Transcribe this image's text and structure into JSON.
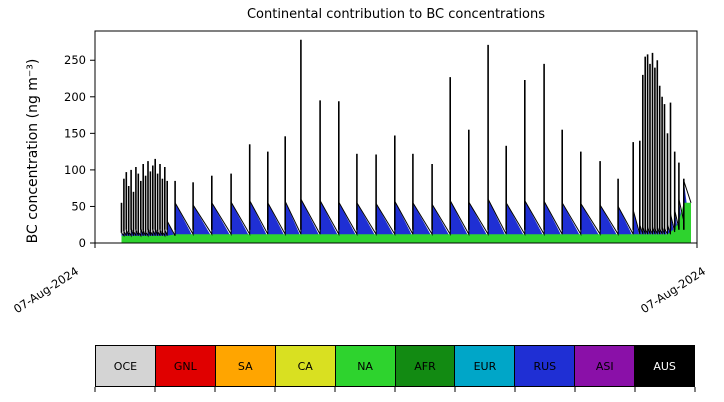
{
  "chart_data": {
    "type": "area",
    "title": "Continental contribution to BC concentrations",
    "ylabel": "BC concentration (ng m⁻³)",
    "xlabel": "",
    "xtick_labels": [
      "07-Aug-2024",
      "07-Aug-2024"
    ],
    "ylim": [
      0,
      290
    ],
    "yticks": [
      0,
      50,
      100,
      150,
      200,
      250
    ],
    "grid": false,
    "legend_position": "bottom",
    "legend": [
      {
        "label": "OCE",
        "color": "#d4d4d4",
        "text_color": "#000000"
      },
      {
        "label": "GNL",
        "color": "#e00000",
        "text_color": "#000000"
      },
      {
        "label": "SA",
        "color": "#ffa500",
        "text_color": "#000000"
      },
      {
        "label": "CA",
        "color": "#d9e021",
        "text_color": "#000000"
      },
      {
        "label": "NA",
        "color": "#2ed32e",
        "text_color": "#000000"
      },
      {
        "label": "AFR",
        "color": "#128a12",
        "text_color": "#000000"
      },
      {
        "label": "EUR",
        "color": "#00a6c8",
        "text_color": "#000000"
      },
      {
        "label": "RUS",
        "color": "#1f2fd4",
        "text_color": "#000000"
      },
      {
        "label": "ASI",
        "color": "#8a10a8",
        "text_color": "#000000"
      },
      {
        "label": "AUS",
        "color": "#000000",
        "text_color": "#ffffff"
      }
    ],
    "stacking_note": "Stacked spike/sawtooth time series: NA (green) base layer, RUS (blue) sawtooth layer decaying between events, AUS/total (black) narrow spikes on top",
    "events_format": [
      "t_fraction_of_x_axis",
      "peak_black_ng_m3",
      "saw_blue_start_ng_m3",
      "green_base_ng_m3"
    ],
    "baseline": {
      "saw_floor": 8
    },
    "t_end": 0.99,
    "events": [
      [
        0.044,
        55,
        14,
        10
      ],
      [
        0.048,
        88,
        16,
        10
      ],
      [
        0.052,
        97,
        18,
        10
      ],
      [
        0.056,
        78,
        15,
        10
      ],
      [
        0.06,
        100,
        20,
        10
      ],
      [
        0.064,
        70,
        16,
        10
      ],
      [
        0.068,
        104,
        18,
        10
      ],
      [
        0.072,
        95,
        15,
        10
      ],
      [
        0.076,
        85,
        20,
        10
      ],
      [
        0.08,
        108,
        17,
        10
      ],
      [
        0.084,
        92,
        15,
        10
      ],
      [
        0.088,
        112,
        20,
        10
      ],
      [
        0.092,
        98,
        16,
        10
      ],
      [
        0.096,
        106,
        18,
        10
      ],
      [
        0.1,
        115,
        20,
        10
      ],
      [
        0.104,
        95,
        16,
        10
      ],
      [
        0.108,
        108,
        18,
        10
      ],
      [
        0.112,
        88,
        15,
        10
      ],
      [
        0.116,
        104,
        18,
        10
      ],
      [
        0.12,
        85,
        30,
        10
      ],
      [
        0.133,
        85,
        55,
        12
      ],
      [
        0.163,
        83,
        52,
        12
      ],
      [
        0.194,
        92,
        55,
        12
      ],
      [
        0.226,
        95,
        56,
        12
      ],
      [
        0.257,
        135,
        58,
        12
      ],
      [
        0.287,
        125,
        55,
        12
      ],
      [
        0.316,
        146,
        57,
        12
      ],
      [
        0.342,
        278,
        60,
        12
      ],
      [
        0.374,
        195,
        58,
        12
      ],
      [
        0.405,
        194,
        56,
        12
      ],
      [
        0.435,
        122,
        55,
        12
      ],
      [
        0.467,
        121,
        54,
        12
      ],
      [
        0.498,
        147,
        57,
        12
      ],
      [
        0.528,
        122,
        55,
        12
      ],
      [
        0.56,
        108,
        53,
        12
      ],
      [
        0.59,
        227,
        58,
        12
      ],
      [
        0.621,
        155,
        56,
        12
      ],
      [
        0.653,
        271,
        60,
        12
      ],
      [
        0.683,
        133,
        55,
        12
      ],
      [
        0.714,
        223,
        58,
        12
      ],
      [
        0.746,
        245,
        57,
        12
      ],
      [
        0.776,
        155,
        55,
        12
      ],
      [
        0.807,
        125,
        54,
        12
      ],
      [
        0.839,
        112,
        52,
        12
      ],
      [
        0.869,
        88,
        50,
        12
      ],
      [
        0.894,
        138,
        45,
        12
      ],
      [
        0.905,
        140,
        25,
        12
      ],
      [
        0.91,
        230,
        22,
        12
      ],
      [
        0.914,
        255,
        20,
        12
      ],
      [
        0.918,
        258,
        22,
        12
      ],
      [
        0.922,
        245,
        20,
        12
      ],
      [
        0.926,
        260,
        22,
        12
      ],
      [
        0.93,
        240,
        20,
        12
      ],
      [
        0.934,
        250,
        22,
        12
      ],
      [
        0.938,
        215,
        20,
        12
      ],
      [
        0.942,
        200,
        22,
        12
      ],
      [
        0.946,
        190,
        20,
        12
      ],
      [
        0.951,
        150,
        25,
        12
      ],
      [
        0.956,
        192,
        40,
        15
      ],
      [
        0.963,
        125,
        45,
        20
      ],
      [
        0.97,
        110,
        60,
        30
      ],
      [
        0.978,
        88,
        85,
        55
      ]
    ]
  }
}
